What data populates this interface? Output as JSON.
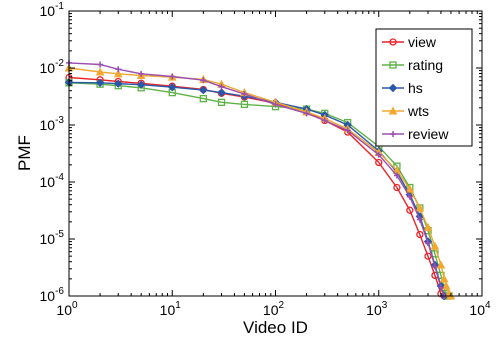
{
  "chart_data": {
    "type": "line",
    "title": "",
    "xlabel": "Video ID",
    "ylabel": "PMF",
    "xscale": "log",
    "yscale": "log",
    "xlim": [
      1,
      10000
    ],
    "ylim": [
      1e-06,
      0.1
    ],
    "grid": false,
    "legend_position": "top-right",
    "x_ticks": [
      {
        "value": 1,
        "base": "10",
        "exp": "0"
      },
      {
        "value": 10,
        "base": "10",
        "exp": "1"
      },
      {
        "value": 100,
        "base": "10",
        "exp": "2"
      },
      {
        "value": 1000,
        "base": "10",
        "exp": "3"
      },
      {
        "value": 10000,
        "base": "10",
        "exp": "4"
      }
    ],
    "y_ticks": [
      {
        "value": 1e-06,
        "base": "10",
        "exp": "-6"
      },
      {
        "value": 1e-05,
        "base": "10",
        "exp": "-5"
      },
      {
        "value": 0.0001,
        "base": "10",
        "exp": "-4"
      },
      {
        "value": 0.001,
        "base": "10",
        "exp": "-3"
      },
      {
        "value": 0.01,
        "base": "10",
        "exp": "-2"
      },
      {
        "value": 0.1,
        "base": "10",
        "exp": "-1"
      }
    ],
    "x": [
      1,
      2,
      3,
      5,
      10,
      20,
      30,
      50,
      100,
      200,
      300,
      500,
      1000,
      1500,
      2000,
      2500,
      3000,
      3500,
      4000,
      4300,
      4500,
      4800,
      5000
    ],
    "series": [
      {
        "name": "view",
        "color": "#e8242a",
        "marker": "circle",
        "values": [
          0.0068,
          0.0062,
          0.0058,
          0.0054,
          0.0048,
          0.0042,
          0.0036,
          0.0031,
          0.0024,
          0.0017,
          0.0012,
          0.00075,
          0.00022,
          8e-05,
          3.2e-05,
          1.2e-05,
          5e-06,
          2.3e-06,
          1.1e-06,
          1e-06,
          1e-06,
          null,
          null
        ]
      },
      {
        "name": "rating",
        "color": "#5fb246",
        "marker": "square",
        "values": [
          0.0055,
          0.0052,
          0.0049,
          0.0045,
          0.0037,
          0.0029,
          0.0025,
          0.0023,
          0.0021,
          0.0019,
          0.0016,
          0.0011,
          0.00042,
          0.00019,
          8e-05,
          3.5e-05,
          1.4e-05,
          5.5e-06,
          2.3e-06,
          1.4e-06,
          1e-06,
          1e-06,
          null
        ]
      },
      {
        "name": "hs",
        "color": "#2b57a8",
        "marker": "diamond",
        "values": [
          0.0056,
          0.0055,
          0.0053,
          0.0051,
          0.0046,
          0.0041,
          0.0037,
          0.0032,
          0.0025,
          0.0019,
          0.0015,
          0.001,
          0.00035,
          0.00015,
          6e-05,
          2.5e-05,
          9e-06,
          3.5e-06,
          1.5e-06,
          1e-06,
          null,
          null,
          null
        ]
      },
      {
        "name": "wts",
        "color": "#f0a830",
        "marker": "triangle",
        "values": [
          0.01,
          0.0085,
          0.0079,
          0.0074,
          0.0069,
          0.0063,
          0.0052,
          0.0037,
          0.0025,
          0.0017,
          0.0013,
          0.00085,
          0.00033,
          0.00016,
          7.5e-05,
          3.5e-05,
          1.6e-05,
          7.5e-06,
          3.5e-06,
          2e-06,
          1.5e-06,
          1.1e-06,
          1e-06
        ]
      },
      {
        "name": "review",
        "color": "#9b4fb0",
        "marker": "plus",
        "values": [
          0.0123,
          0.0115,
          0.0095,
          0.0079,
          0.0071,
          0.0061,
          0.0047,
          0.0035,
          0.0023,
          0.0016,
          0.0012,
          0.0008,
          0.0003,
          0.00013,
          5.5e-05,
          2.2e-05,
          8.5e-06,
          3.3e-06,
          1.4e-06,
          1e-06,
          null,
          null,
          null
        ]
      }
    ]
  }
}
